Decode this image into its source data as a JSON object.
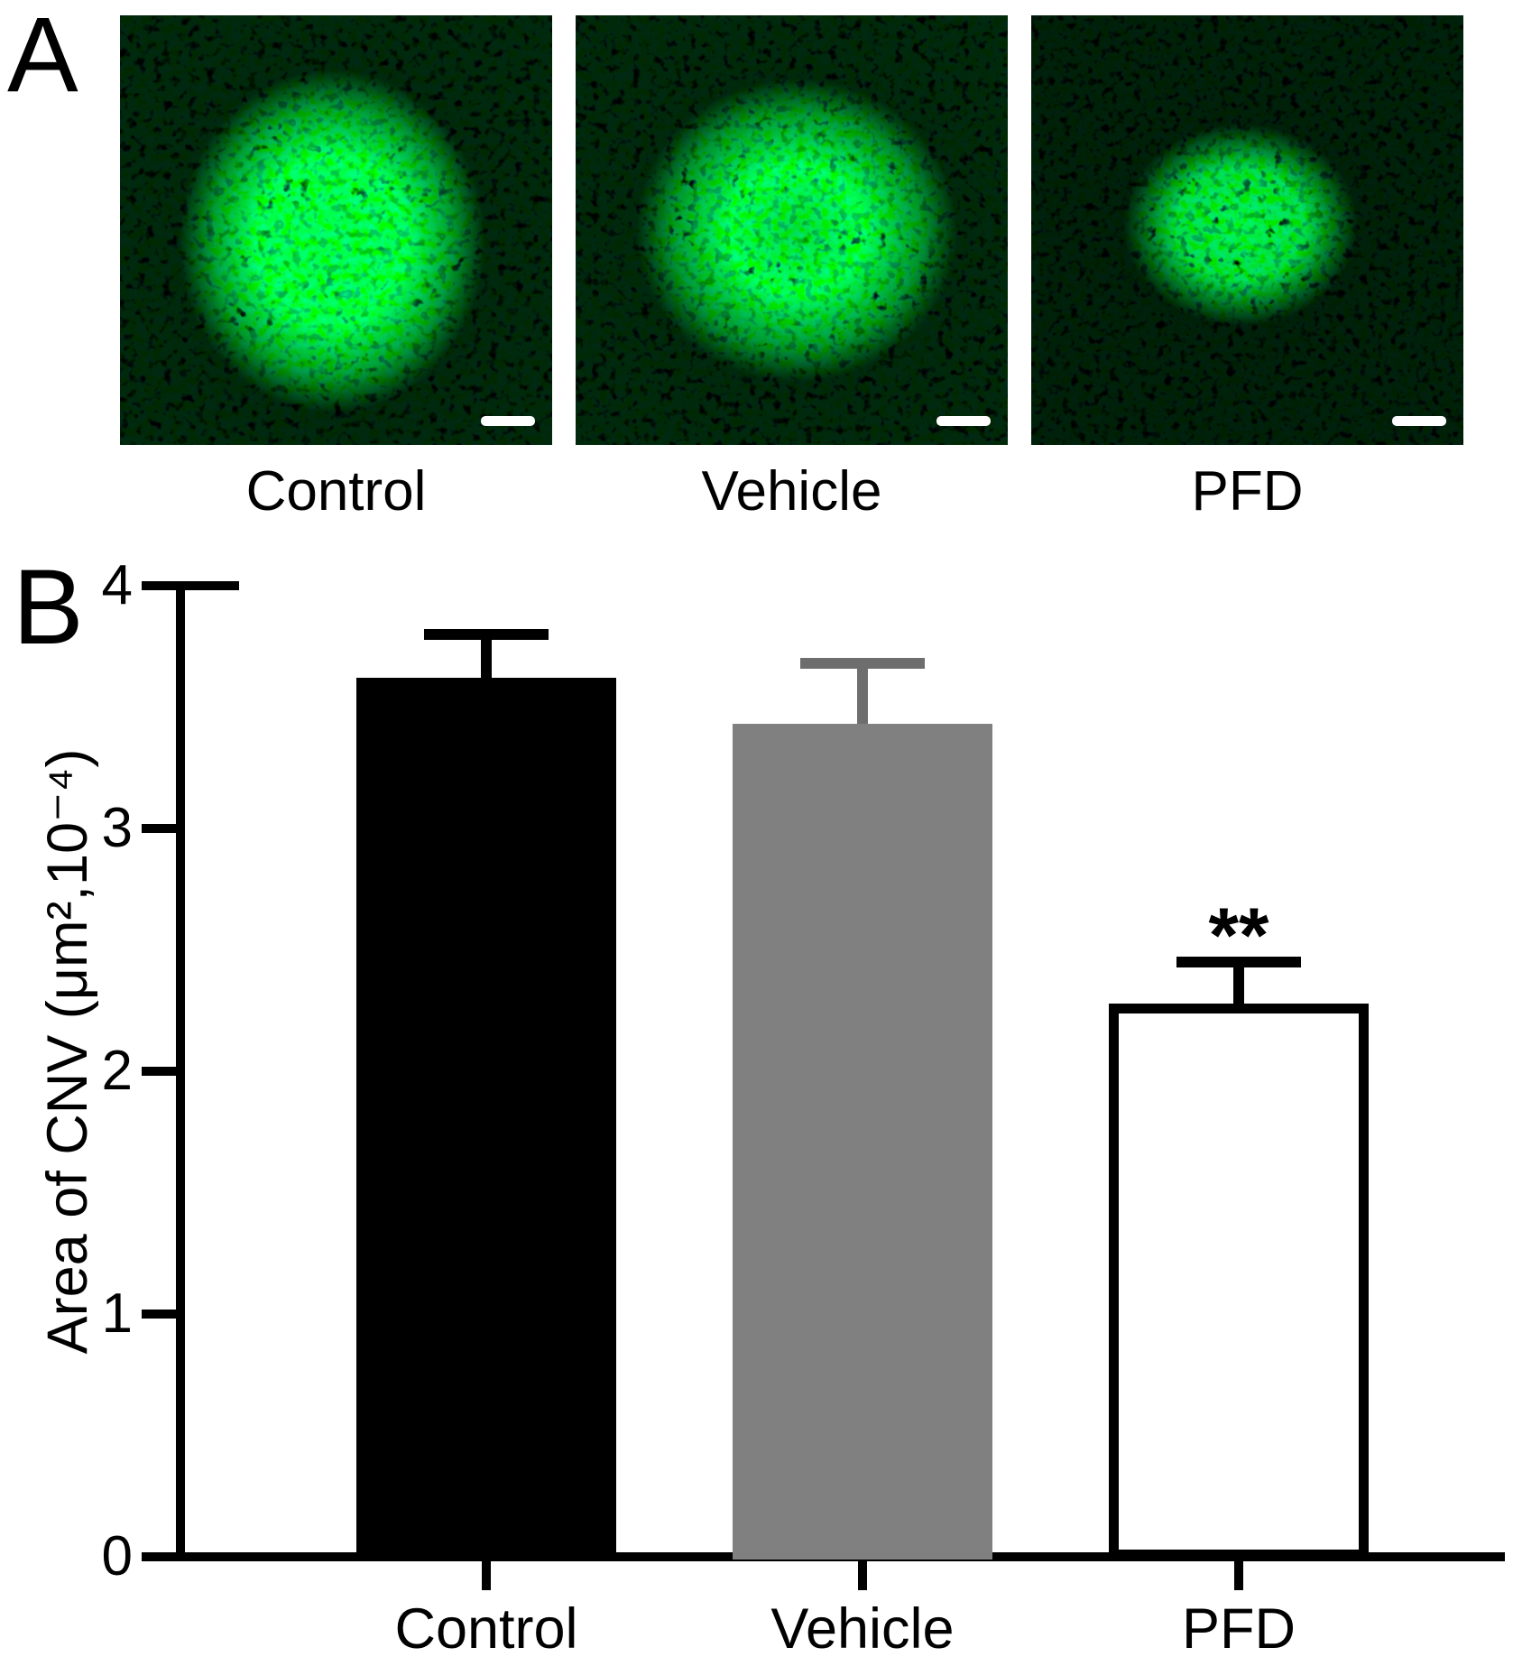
{
  "panel_a": {
    "label": "A",
    "image_background": "#000000",
    "fluorescence_color": "#17e12b",
    "scale_bar_color": "#ffffff",
    "images": [
      {
        "label": "Control"
      },
      {
        "label": "Vehicle"
      },
      {
        "label": "PFD"
      }
    ]
  },
  "panel_b": {
    "label": "B"
  },
  "chart_data": {
    "type": "bar",
    "categories": [
      "Control",
      "Vehicle",
      "PFD"
    ],
    "values": [
      3.62,
      3.43,
      2.28
    ],
    "errors_plus": [
      0.18,
      0.25,
      0.17
    ],
    "significance": [
      "",
      "",
      "**"
    ],
    "bar_fill_colors": [
      "#000000",
      "#808080",
      "#ffffff"
    ],
    "bar_border_colors": [
      "#000000",
      "#808080",
      "#000000"
    ],
    "error_bar_colors": [
      "#000000",
      "#6e6e6e",
      "#000000"
    ],
    "title": "",
    "xlabel": "",
    "ylabel": "Area of CNV (μm²,10⁻⁴)",
    "ylim": [
      0,
      4
    ],
    "yticks": [
      "0",
      "1",
      "2",
      "3",
      "4"
    ],
    "grid": false,
    "legend": false
  }
}
